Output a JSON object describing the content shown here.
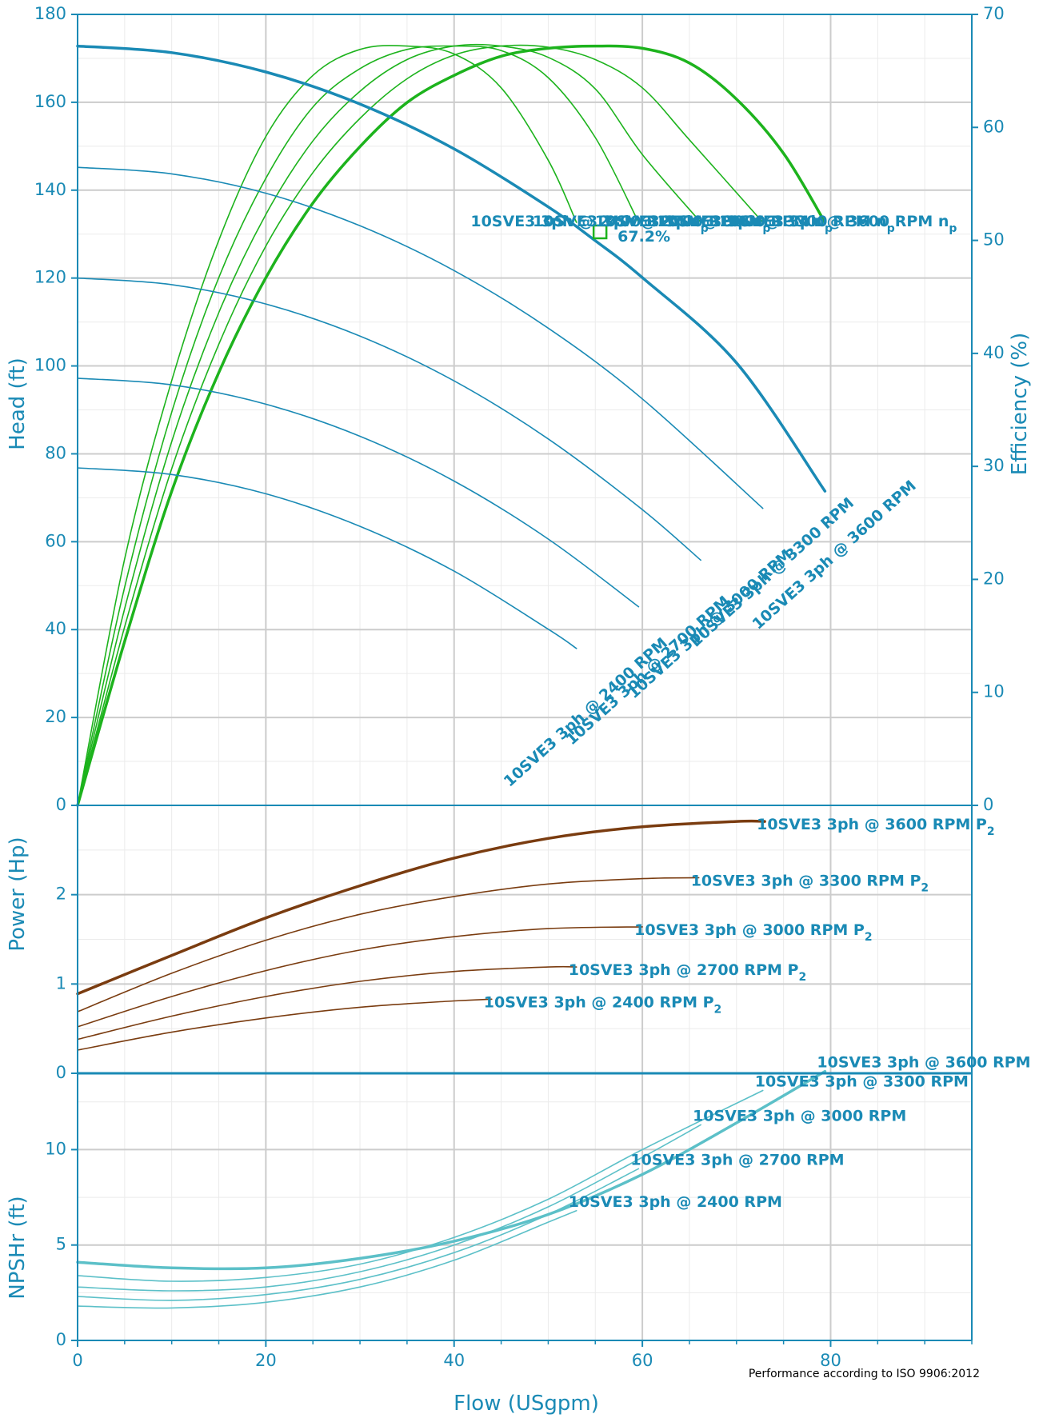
{
  "chart_data": {
    "type": "line",
    "colors": {
      "axis": "#1a8ab5",
      "head": "#1a8ab5",
      "efficiency": "#1db31d",
      "power": "#7a3c10",
      "npsh": "#5cc0c8",
      "grid_major": "#cccccc",
      "grid_minor": "#ebebeb",
      "bep_marker": "#1db31d"
    },
    "x_axis": {
      "label": "Flow (USgpm)",
      "range": [
        0,
        95
      ],
      "ticks": [
        0,
        20,
        40,
        60,
        80
      ],
      "tick_labels": [
        "0",
        "20",
        "40",
        "60",
        "80"
      ],
      "minor_step": 5
    },
    "panels": [
      {
        "id": "head",
        "ylabel": "Head (ft)",
        "ylim": [
          0,
          180
        ],
        "ticks": [
          0,
          20,
          40,
          60,
          80,
          100,
          120,
          140,
          160,
          180
        ],
        "tick_labels": [
          "0",
          "20",
          "40",
          "60",
          "80",
          "100",
          "120",
          "140",
          "160",
          "180"
        ],
        "minor_step": 10,
        "y2label": "Efficiency (%)",
        "y2lim": [
          0,
          70
        ],
        "y2ticks": [
          0,
          10,
          20,
          30,
          40,
          50,
          60,
          70
        ],
        "y2tick_labels": [
          "0",
          "10",
          "20",
          "30",
          "40",
          "50",
          "60",
          "70"
        ]
      },
      {
        "id": "power",
        "ylabel": "Power (Hp)",
        "ylim": [
          0,
          3
        ],
        "ticks": [
          0,
          1,
          2
        ],
        "tick_labels": [
          "0",
          "1",
          "2"
        ],
        "minor_step": 0.5
      },
      {
        "id": "npsh",
        "ylabel": "NPSHr (ft)",
        "ylim": [
          0,
          14
        ],
        "ticks": [
          0,
          5,
          10
        ],
        "tick_labels": [
          "0",
          "5",
          "10"
        ],
        "minor_step": 2.5
      }
    ],
    "head_series": [
      {
        "name": "10SVE3 3ph @ 2400 RPM",
        "label": "10SVE3 3ph @ 2400 RPM",
        "x": [
          0,
          10,
          20,
          30,
          40,
          50,
          53
        ],
        "y": [
          76.8,
          75.3,
          70.9,
          63.5,
          53.3,
          40.1,
          35.7
        ]
      },
      {
        "name": "10SVE3 3ph @ 2700 RPM",
        "label": "10SVE3 3ph @ 2700 RPM",
        "x": [
          0,
          10,
          20,
          30,
          40,
          50,
          59.6
        ],
        "y": [
          97.2,
          95.7,
          91.3,
          84.0,
          73.8,
          60.6,
          45.2
        ]
      },
      {
        "name": "10SVE3 3ph @ 3000 RPM",
        "label": "10SVE3 3ph @ 3000 RPM",
        "x": [
          0,
          10,
          20,
          30,
          40,
          50,
          60,
          66.2
        ],
        "y": [
          120.0,
          118.5,
          114.1,
          106.8,
          96.6,
          83.4,
          67.3,
          55.8
        ]
      },
      {
        "name": "10SVE3 3ph @ 3300 RPM",
        "label": "10SVE3 3ph @ 3300 RPM",
        "x": [
          0,
          10,
          20,
          30,
          40,
          50,
          60,
          72.8
        ],
        "y": [
          145.2,
          143.7,
          139.3,
          131.9,
          121.7,
          108.6,
          92.5,
          67.6
        ]
      },
      {
        "name": "10SVE3 3ph @ 3600 RPM",
        "label": "10SVE3 3ph @ 3600 RPM",
        "x": [
          0,
          10,
          20,
          30,
          40,
          50,
          55,
          60,
          70,
          79.4
        ],
        "y": [
          172.8,
          171.3,
          166.9,
          159.6,
          149.4,
          136.2,
          128.5,
          120.1,
          100.7,
          71.5
        ]
      }
    ],
    "efficiency_series": [
      {
        "name": "10SVE3 3ph @ 2400 RPM",
        "x": [
          0,
          5,
          10,
          15,
          20,
          25,
          30,
          35,
          40,
          45,
          50,
          53
        ],
        "y": [
          0,
          21.8,
          37.6,
          50.0,
          59.2,
          64.6,
          66.9,
          67.2,
          66.5,
          63.5,
          57.1,
          51.6
        ]
      },
      {
        "name": "10SVE3 3ph @ 2700 RPM",
        "x": [
          0,
          5,
          10,
          15,
          20,
          25,
          30,
          35,
          40,
          45,
          50,
          55,
          59.6
        ],
        "y": [
          0,
          19.3,
          34.8,
          46.7,
          55.5,
          61.8,
          65.2,
          66.9,
          67.2,
          66.8,
          64.4,
          59.1,
          51.6
        ]
      },
      {
        "name": "10SVE3 3ph @ 3000 RPM",
        "x": [
          0,
          5,
          10,
          15,
          20,
          25,
          30,
          35,
          40,
          45,
          50,
          55,
          60,
          66.2
        ],
        "y": [
          0,
          17.4,
          32.2,
          43.6,
          52.3,
          58.8,
          63.2,
          66.0,
          67.2,
          67.2,
          66.2,
          63.4,
          57.6,
          51.6
        ]
      },
      {
        "name": "10SVE3 3ph @ 3300 RPM",
        "x": [
          0,
          5,
          10,
          15,
          20,
          25,
          30,
          35,
          40,
          45,
          50,
          55,
          60,
          65,
          72.8
        ],
        "y": [
          0,
          15.8,
          29.8,
          40.8,
          49.5,
          56.0,
          60.8,
          64.3,
          66.4,
          67.2,
          67.1,
          66.0,
          63.5,
          58.9,
          51.6
        ]
      },
      {
        "name": "10SVE3 3ph @ 3600 RPM",
        "x": [
          0,
          5,
          10,
          15,
          20,
          25,
          30,
          35,
          40,
          45,
          50,
          55,
          60,
          65,
          70,
          75,
          79.4
        ],
        "y": [
          0,
          14.5,
          27.8,
          38.3,
          46.7,
          53.3,
          58.3,
          62.2,
          64.6,
          66.3,
          67.0,
          67.2,
          67.0,
          65.7,
          62.5,
          57.7,
          51.6
        ]
      }
    ],
    "efficiency_labels": [
      "10SVE3 3ph @ 2400 RPM",
      "10SVE3 3ph @ 2700 RPM",
      "10SVE3 3ph @ 3000 RPM",
      "10SVE3 3ph @ 3300 RPM",
      "10SVE3 3ph @ 3600 RPM"
    ],
    "efficiency_suffix": "n",
    "efficiency_suffix_sub": "p",
    "bep": {
      "x": 55.5,
      "y_head": 130.5,
      "label": "67.2%"
    },
    "power_series": [
      {
        "name": "10SVE3 3ph @ 2400 RPM",
        "label": "10SVE3 3ph @ 2400 RPM",
        "x": [
          0,
          10,
          20,
          30,
          40,
          44
        ],
        "y": [
          0.26,
          0.46,
          0.62,
          0.74,
          0.81,
          0.83
        ]
      },
      {
        "name": "10SVE3 3ph @ 2700 RPM",
        "label": "10SVE3 3ph @ 2700 RPM",
        "x": [
          0,
          10,
          20,
          30,
          40,
          50,
          53
        ],
        "y": [
          0.38,
          0.64,
          0.86,
          1.03,
          1.14,
          1.19,
          1.19
        ]
      },
      {
        "name": "10SVE3 3ph @ 3000 RPM",
        "label": "10SVE3 3ph @ 3000 RPM",
        "x": [
          0,
          10,
          20,
          30,
          40,
          50,
          60
        ],
        "y": [
          0.52,
          0.86,
          1.15,
          1.38,
          1.53,
          1.62,
          1.64
        ]
      },
      {
        "name": "10SVE3 3ph @ 3300 RPM",
        "label": "10SVE3 3ph @ 3300 RPM",
        "x": [
          0,
          10,
          20,
          30,
          40,
          50,
          60,
          66
        ],
        "y": [
          0.69,
          1.12,
          1.49,
          1.78,
          1.98,
          2.12,
          2.18,
          2.19
        ]
      },
      {
        "name": "10SVE3 3ph @ 3600 RPM",
        "label": "10SVE3 3ph @ 3600 RPM",
        "x": [
          0,
          10,
          20,
          30,
          40,
          50,
          60,
          70,
          73
        ],
        "y": [
          0.89,
          1.32,
          1.74,
          2.1,
          2.41,
          2.63,
          2.76,
          2.82,
          2.82
        ]
      }
    ],
    "power_suffix": "P",
    "power_suffix_sub": "2",
    "npsh_series": [
      {
        "name": "10SVE3 3ph @ 2400 RPM",
        "label": "10SVE3 3ph @ 2400 RPM",
        "x": [
          0,
          10,
          20,
          30,
          40,
          50,
          53
        ],
        "y": [
          1.8,
          1.7,
          2.0,
          2.8,
          4.2,
          6.2,
          6.8
        ]
      },
      {
        "name": "10SVE3 3ph @ 2700 RPM",
        "label": "10SVE3 3ph @ 2700 RPM",
        "x": [
          0,
          10,
          20,
          30,
          40,
          50,
          59.6
        ],
        "y": [
          2.3,
          2.1,
          2.4,
          3.2,
          4.6,
          6.6,
          9.0
        ]
      },
      {
        "name": "10SVE3 3ph @ 3000 RPM",
        "label": "10SVE3 3ph @ 3000 RPM",
        "x": [
          0,
          10,
          20,
          30,
          40,
          50,
          60,
          66.2
        ],
        "y": [
          2.8,
          2.6,
          2.8,
          3.6,
          5.0,
          7.0,
          9.6,
          11.3
        ]
      },
      {
        "name": "10SVE3 3ph @ 3300 RPM",
        "label": "10SVE3 3ph @ 3300 RPM",
        "x": [
          0,
          10,
          20,
          30,
          40,
          50,
          60,
          72.8
        ],
        "y": [
          3.4,
          3.1,
          3.3,
          4.0,
          5.4,
          7.4,
          10.0,
          13.1
        ]
      },
      {
        "name": "10SVE3 3ph @ 3600 RPM",
        "label": "10SVE3 3ph @ 3600 RPM",
        "x": [
          0,
          10,
          20,
          30,
          40,
          50,
          60,
          70,
          79.4
        ],
        "y": [
          4.1,
          3.8,
          3.8,
          4.3,
          5.2,
          6.6,
          8.7,
          11.4,
          14.1
        ]
      }
    ],
    "footnote": "Performance according to ISO 9906:2012"
  }
}
